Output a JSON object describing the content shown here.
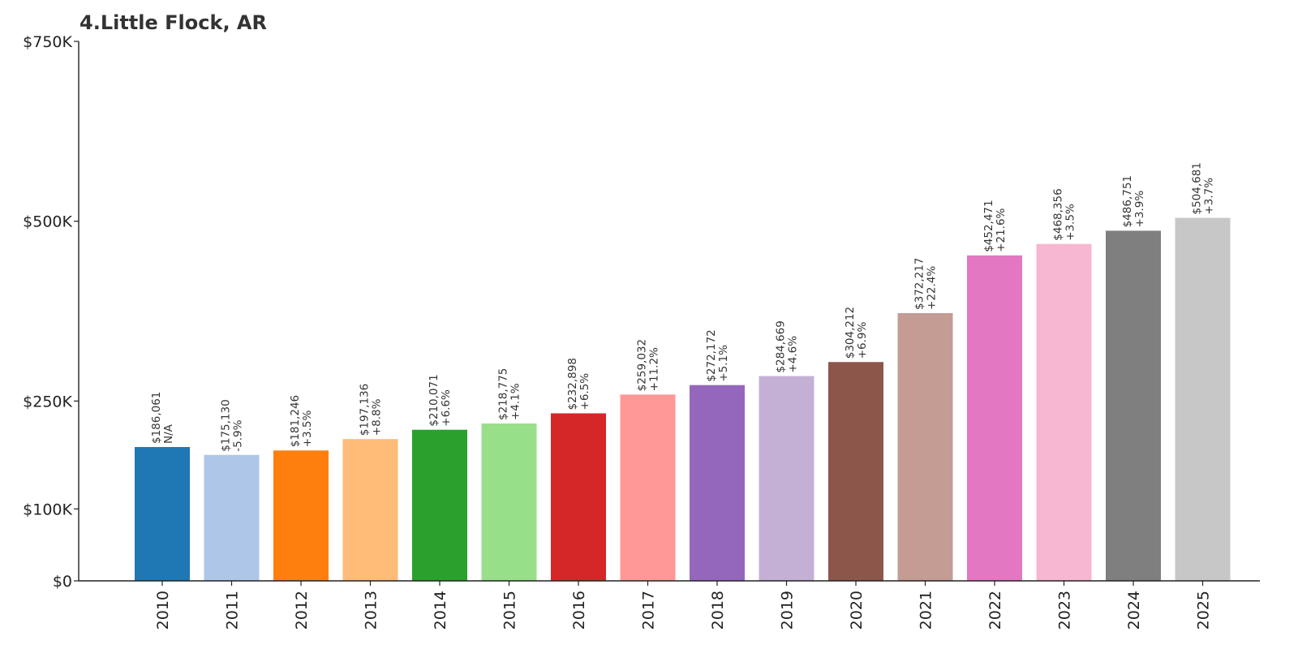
{
  "chart_data": {
    "type": "bar",
    "title": "4.Little Flock, AR",
    "xlabel": "",
    "ylabel": "",
    "categories": [
      "2010",
      "2011",
      "2012",
      "2013",
      "2014",
      "2015",
      "2016",
      "2017",
      "2018",
      "2019",
      "2020",
      "2021",
      "2022",
      "2023",
      "2024",
      "2025"
    ],
    "values": [
      186061,
      175130,
      181246,
      197136,
      210071,
      218775,
      232898,
      259032,
      272172,
      284669,
      304212,
      372217,
      452471,
      468356,
      486751,
      504681
    ],
    "value_labels": [
      "$186,061",
      "$175,130",
      "$181,246",
      "$197,136",
      "$210,071",
      "$218,775",
      "$232,898",
      "$259,032",
      "$272,172",
      "$284,669",
      "$304,212",
      "$372,217",
      "$452,471",
      "$468,356",
      "$486,751",
      "$504,681"
    ],
    "change_labels": [
      "N/A",
      "-5.9%",
      "+3.5%",
      "+8.8%",
      "+6.6%",
      "+4.1%",
      "+6.5%",
      "+11.2%",
      "+5.1%",
      "+4.6%",
      "+6.9%",
      "+22.4%",
      "+21.6%",
      "+3.5%",
      "+3.9%",
      "+3.7%"
    ],
    "colors": [
      "#1f77b4",
      "#aec7e8",
      "#ff7f0e",
      "#ffbb78",
      "#2ca02c",
      "#98df8a",
      "#d62728",
      "#ff9896",
      "#9467bd",
      "#c5b0d5",
      "#8c564b",
      "#c49c94",
      "#e377c2",
      "#f7b6d2",
      "#7f7f7f",
      "#c7c7c7"
    ],
    "yticks": [
      0,
      100000,
      250000,
      500000,
      750000
    ],
    "ytick_labels": [
      "$0",
      "$100K",
      "$250K",
      "$500K",
      "$750K"
    ],
    "ylim": [
      0,
      750000
    ],
    "grid": false,
    "legend": "none"
  }
}
